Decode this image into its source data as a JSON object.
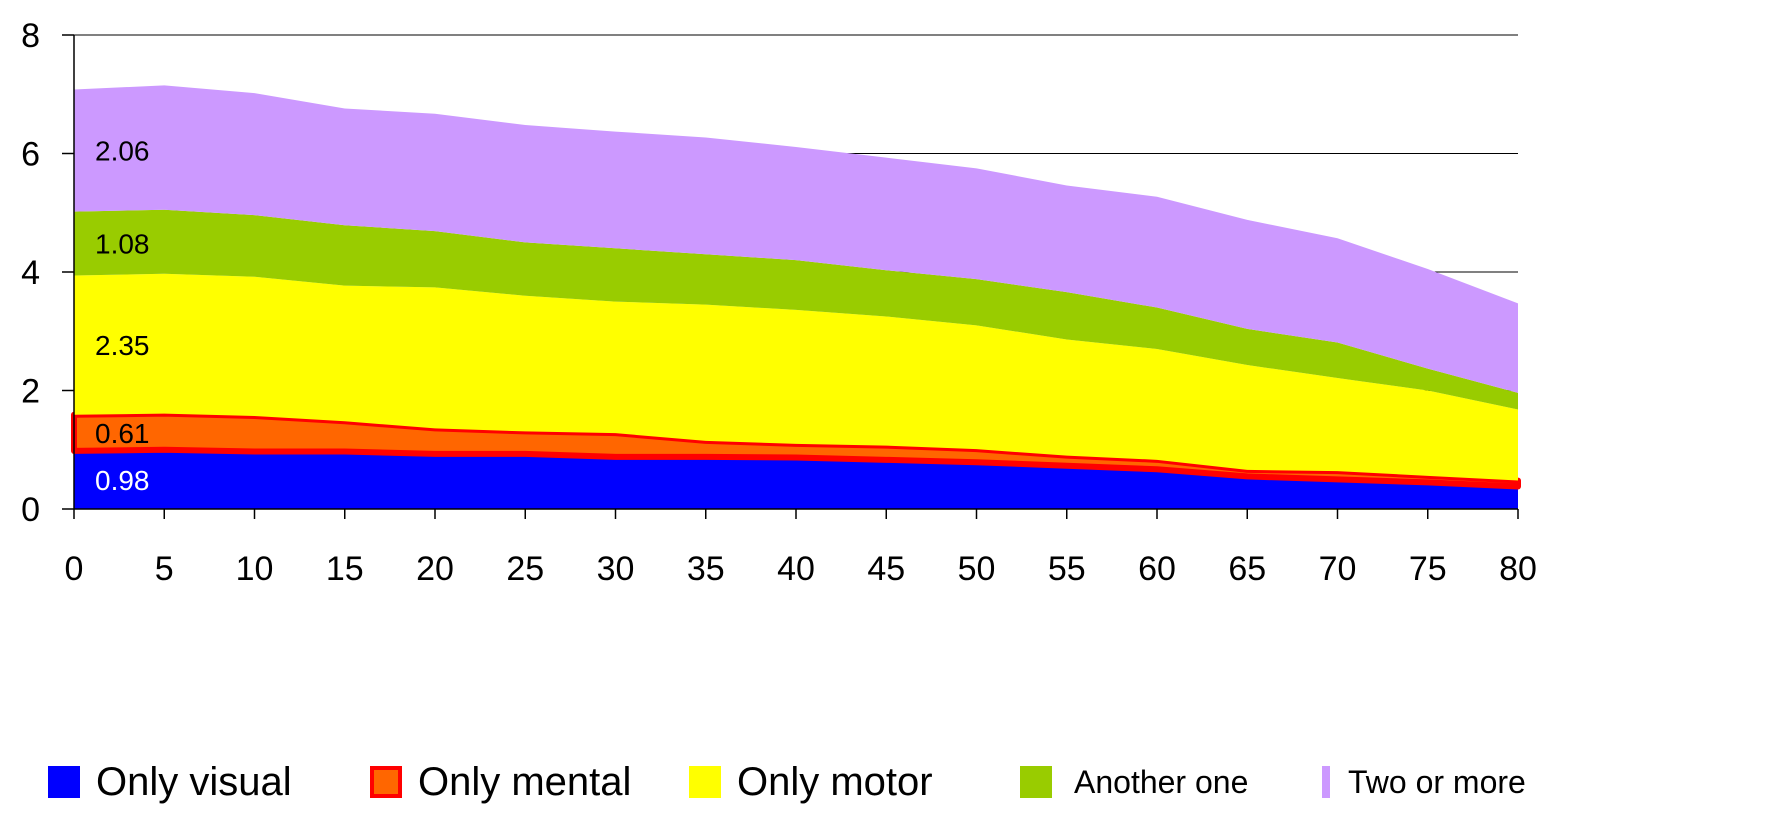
{
  "chart_data": {
    "type": "area",
    "stacked": true,
    "title": "",
    "xlabel": "",
    "ylabel": "",
    "x": [
      0,
      5,
      10,
      15,
      20,
      25,
      30,
      35,
      40,
      45,
      50,
      55,
      60,
      65,
      70,
      75,
      80
    ],
    "ylim": [
      0,
      8
    ],
    "yticks": [
      "0",
      "2",
      "4",
      "6",
      "8"
    ],
    "xticks": [
      "0",
      "5",
      "10",
      "15",
      "20",
      "25",
      "30",
      "35",
      "40",
      "45",
      "50",
      "55",
      "60",
      "65",
      "70",
      "75",
      "80"
    ],
    "grid": "horizontal",
    "legend_position": "bottom",
    "series": [
      {
        "name": "Only visual",
        "color": "#0000ff",
        "values": [
          0.98,
          1.0,
          0.97,
          0.97,
          0.93,
          0.93,
          0.88,
          0.88,
          0.87,
          0.83,
          0.79,
          0.73,
          0.67,
          0.55,
          0.5,
          0.45,
          0.38
        ]
      },
      {
        "name": "Only mental",
        "color": "#ff6600",
        "border": "#ff0000",
        "values": [
          0.61,
          0.61,
          0.6,
          0.51,
          0.43,
          0.38,
          0.4,
          0.27,
          0.23,
          0.24,
          0.22,
          0.17,
          0.16,
          0.11,
          0.14,
          0.11,
          0.1
        ]
      },
      {
        "name": "Only motor",
        "color": "#ffff00",
        "values": [
          2.35,
          2.36,
          2.35,
          2.29,
          2.38,
          2.29,
          2.22,
          2.3,
          2.26,
          2.18,
          2.09,
          1.96,
          1.87,
          1.77,
          1.57,
          1.44,
          1.2
        ]
      },
      {
        "name": "Another one",
        "color": "#99cc00",
        "values": [
          1.08,
          1.08,
          1.04,
          1.02,
          0.95,
          0.9,
          0.9,
          0.85,
          0.84,
          0.78,
          0.78,
          0.8,
          0.7,
          0.61,
          0.6,
          0.37,
          0.28
        ]
      },
      {
        "name": "Two or more",
        "color": "#cc99ff",
        "values": [
          2.06,
          2.1,
          2.06,
          1.97,
          1.98,
          1.98,
          1.97,
          1.97,
          1.91,
          1.9,
          1.87,
          1.8,
          1.87,
          1.84,
          1.76,
          1.68,
          1.51
        ]
      }
    ],
    "data_labels": [
      {
        "series": "Only visual",
        "text": "0.98",
        "color": "#ffffff"
      },
      {
        "series": "Only mental",
        "text": "0.61",
        "color": "#000000"
      },
      {
        "series": "Only motor",
        "text": "2.35",
        "color": "#000000"
      },
      {
        "series": "Another one",
        "text": "1.08",
        "color": "#000000"
      },
      {
        "series": "Two or more",
        "text": "2.06",
        "color": "#000000"
      }
    ]
  },
  "legend": {
    "items": [
      {
        "label": "Only visual",
        "color": "#0000ff",
        "border": "#0000ff"
      },
      {
        "label": "Only mental",
        "color": "#ff6600",
        "border": "#ff0000"
      },
      {
        "label": "Only motor",
        "color": "#ffff00",
        "border": "#ffff00"
      },
      {
        "label": "Another one",
        "color": "#99cc00",
        "border": "#99cc00"
      },
      {
        "label": "Two or more",
        "color": "#cc99ff",
        "border": "#cc99ff"
      }
    ]
  }
}
